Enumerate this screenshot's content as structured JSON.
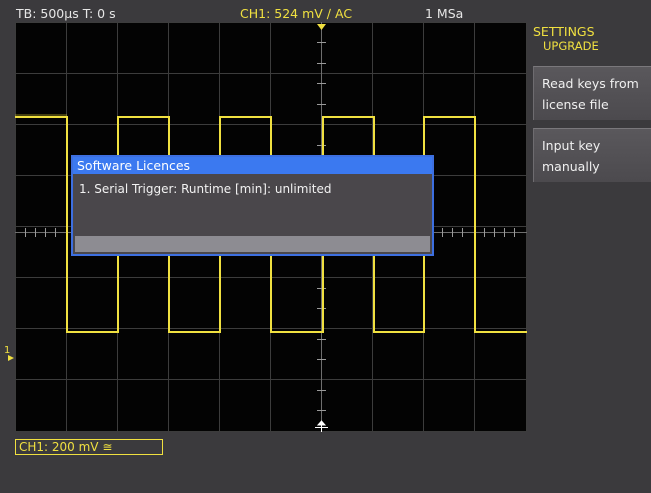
{
  "topbar": {
    "timebase": "TB: 500µs   T: 0 s",
    "trigger": "CH1: 524 mV ∕ AC",
    "sample_rate": "1 MSa"
  },
  "sidebar": {
    "title_line1": "SETTINGS",
    "title_line2": "UPGRADE",
    "softkeys": [
      {
        "label_line1": "Read keys from",
        "label_line2": "license file"
      },
      {
        "label_line1": "Input key",
        "label_line2": "manually"
      }
    ]
  },
  "dialog": {
    "title": "Software Licences",
    "line1": "1. Serial Trigger: Runtime [min]: unlimited"
  },
  "channel_box": "CH1: 200 mV ≅",
  "colors": {
    "trace": "#f0e040",
    "dialog_header": "#3b79f0",
    "accent": "#f0e040"
  },
  "icons": {
    "trigger_marker": "down-triangle",
    "ground_marker": "ground-arrow",
    "center_marker": "cross-arrows"
  }
}
